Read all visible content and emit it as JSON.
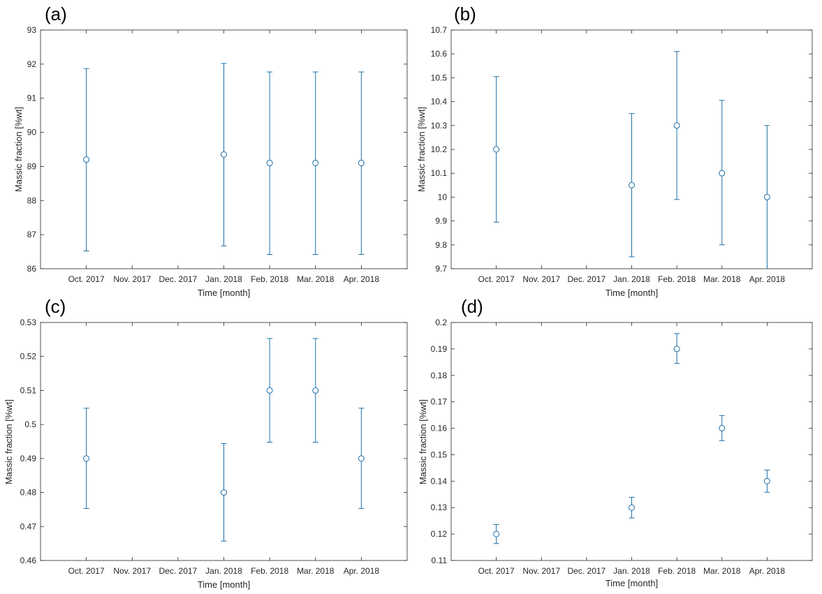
{
  "colors": {
    "series": "#1f6fa8",
    "axis": "#262626",
    "background": "#ffffff"
  },
  "chart_data": [
    {
      "panel_label": "(a)",
      "type": "scatter",
      "error_bars": true,
      "marker": "open-circle",
      "xlabel": "Time [month]",
      "ylabel": "Massic fraction [%wt]",
      "categories": [
        "Oct. 2017",
        "Nov. 2017",
        "Dec. 2017",
        "Jan. 2018",
        "Feb. 2018",
        "Mar. 2018",
        "Apr. 2018"
      ],
      "ylim": [
        86,
        93
      ],
      "yticks": [
        "86",
        "87",
        "88",
        "89",
        "90",
        "91",
        "92",
        "93"
      ],
      "grid": false,
      "points": [
        {
          "x": "Oct. 2017",
          "y": 89.2,
          "low": 86.52,
          "high": 91.87
        },
        {
          "x": "Jan. 2018",
          "y": 89.35,
          "low": 86.67,
          "high": 92.02
        },
        {
          "x": "Feb. 2018",
          "y": 89.1,
          "low": 86.42,
          "high": 91.77
        },
        {
          "x": "Mar. 2018",
          "y": 89.1,
          "low": 86.42,
          "high": 91.77
        },
        {
          "x": "Apr. 2018",
          "y": 89.1,
          "low": 86.42,
          "high": 91.77
        }
      ]
    },
    {
      "panel_label": "(b)",
      "type": "scatter",
      "error_bars": true,
      "marker": "open-circle",
      "xlabel": "Time [month]",
      "ylabel": "Massic fraction [%wt]",
      "categories": [
        "Oct. 2017",
        "Nov. 2017",
        "Dec. 2017",
        "Jan. 2018",
        "Feb. 2018",
        "Mar. 2018",
        "Apr. 2018"
      ],
      "ylim": [
        9.7,
        10.7
      ],
      "yticks": [
        "9.7",
        "9.8",
        "9.9",
        "10",
        "10.1",
        "10.2",
        "10.3",
        "10.4",
        "10.5",
        "10.6",
        "10.7"
      ],
      "grid": false,
      "points": [
        {
          "x": "Oct. 2017",
          "y": 10.2,
          "low": 9.895,
          "high": 10.505
        },
        {
          "x": "Jan. 2018",
          "y": 10.05,
          "low": 9.75,
          "high": 10.35
        },
        {
          "x": "Feb. 2018",
          "y": 10.3,
          "low": 9.99,
          "high": 10.61
        },
        {
          "x": "Mar. 2018",
          "y": 10.1,
          "low": 9.8,
          "high": 10.405
        },
        {
          "x": "Apr. 2018",
          "y": 10.0,
          "low": 9.7,
          "high": 10.3
        }
      ]
    },
    {
      "panel_label": "(c)",
      "type": "scatter",
      "error_bars": true,
      "marker": "open-circle",
      "xlabel": "Time [month]",
      "ylabel": "Massic fraction [%wt]",
      "categories": [
        "Oct. 2017",
        "Nov. 2017",
        "Dec. 2017",
        "Jan. 2018",
        "Feb. 2018",
        "Mar. 2018",
        "Apr. 2018"
      ],
      "ylim": [
        0.46,
        0.53
      ],
      "yticks": [
        "0.46",
        "0.47",
        "0.48",
        "0.49",
        "0.5",
        "0.51",
        "0.52",
        "0.53"
      ],
      "grid": false,
      "points": [
        {
          "x": "Oct. 2017",
          "y": 0.49,
          "low": 0.4753,
          "high": 0.5048
        },
        {
          "x": "Jan. 2018",
          "y": 0.48,
          "low": 0.4657,
          "high": 0.4944
        },
        {
          "x": "Feb. 2018",
          "y": 0.51,
          "low": 0.4948,
          "high": 0.5253
        },
        {
          "x": "Mar. 2018",
          "y": 0.51,
          "low": 0.4948,
          "high": 0.5253
        },
        {
          "x": "Apr. 2018",
          "y": 0.49,
          "low": 0.4753,
          "high": 0.5048
        }
      ]
    },
    {
      "panel_label": "(d)",
      "type": "scatter",
      "error_bars": true,
      "marker": "open-circle",
      "xlabel": "Time [month]",
      "ylabel": "Massic fraction [%wt]",
      "categories": [
        "Oct. 2017",
        "Nov. 2017",
        "Dec. 2017",
        "Jan. 2018",
        "Feb. 2018",
        "Mar. 2018",
        "Apr. 2018"
      ],
      "ylim": [
        0.11,
        0.2
      ],
      "yticks": [
        "0.11",
        "0.12",
        "0.13",
        "0.14",
        "0.15",
        "0.16",
        "0.17",
        "0.18",
        "0.19",
        "0.2"
      ],
      "grid": false,
      "points": [
        {
          "x": "Oct. 2017",
          "y": 0.12,
          "low": 0.1164,
          "high": 0.1236
        },
        {
          "x": "Jan. 2018",
          "y": 0.13,
          "low": 0.1261,
          "high": 0.1339
        },
        {
          "x": "Feb. 2018",
          "y": 0.19,
          "low": 0.1845,
          "high": 0.1958
        },
        {
          "x": "Mar. 2018",
          "y": 0.16,
          "low": 0.1553,
          "high": 0.1648
        },
        {
          "x": "Apr. 2018",
          "y": 0.14,
          "low": 0.1358,
          "high": 0.1442
        }
      ]
    }
  ]
}
